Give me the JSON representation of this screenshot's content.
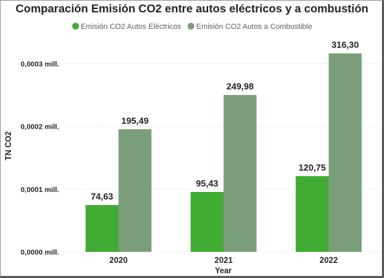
{
  "chart_data": {
    "type": "bar",
    "title": "Comparación Emisión CO2 entre autos eléctricos y a combustión",
    "xlabel": "Year",
    "ylabel": "TN CO2",
    "categories": [
      "2020",
      "2021",
      "2022"
    ],
    "series": [
      {
        "name": "Emisión CO2 Autos Eléctricos",
        "color": "#41ab33",
        "values": [
          74.63,
          95.43,
          120.75
        ],
        "labels": [
          "74,63",
          "95,43",
          "120,75"
        ]
      },
      {
        "name": "Emisión CO2 Autos a Combustible",
        "color": "#7a9e79",
        "values": [
          195.49,
          249.98,
          316.3
        ],
        "labels": [
          "195,49",
          "249,98",
          "316,30"
        ]
      }
    ],
    "yticks": [
      0,
      100,
      200,
      300
    ],
    "yticklabels": [
      "0,0000 mill.",
      "0,0001 mill.",
      "0,0002 mill.",
      "0,0003 mill."
    ],
    "ylim": [
      0,
      340
    ],
    "grid": true,
    "legend_position": "top"
  }
}
